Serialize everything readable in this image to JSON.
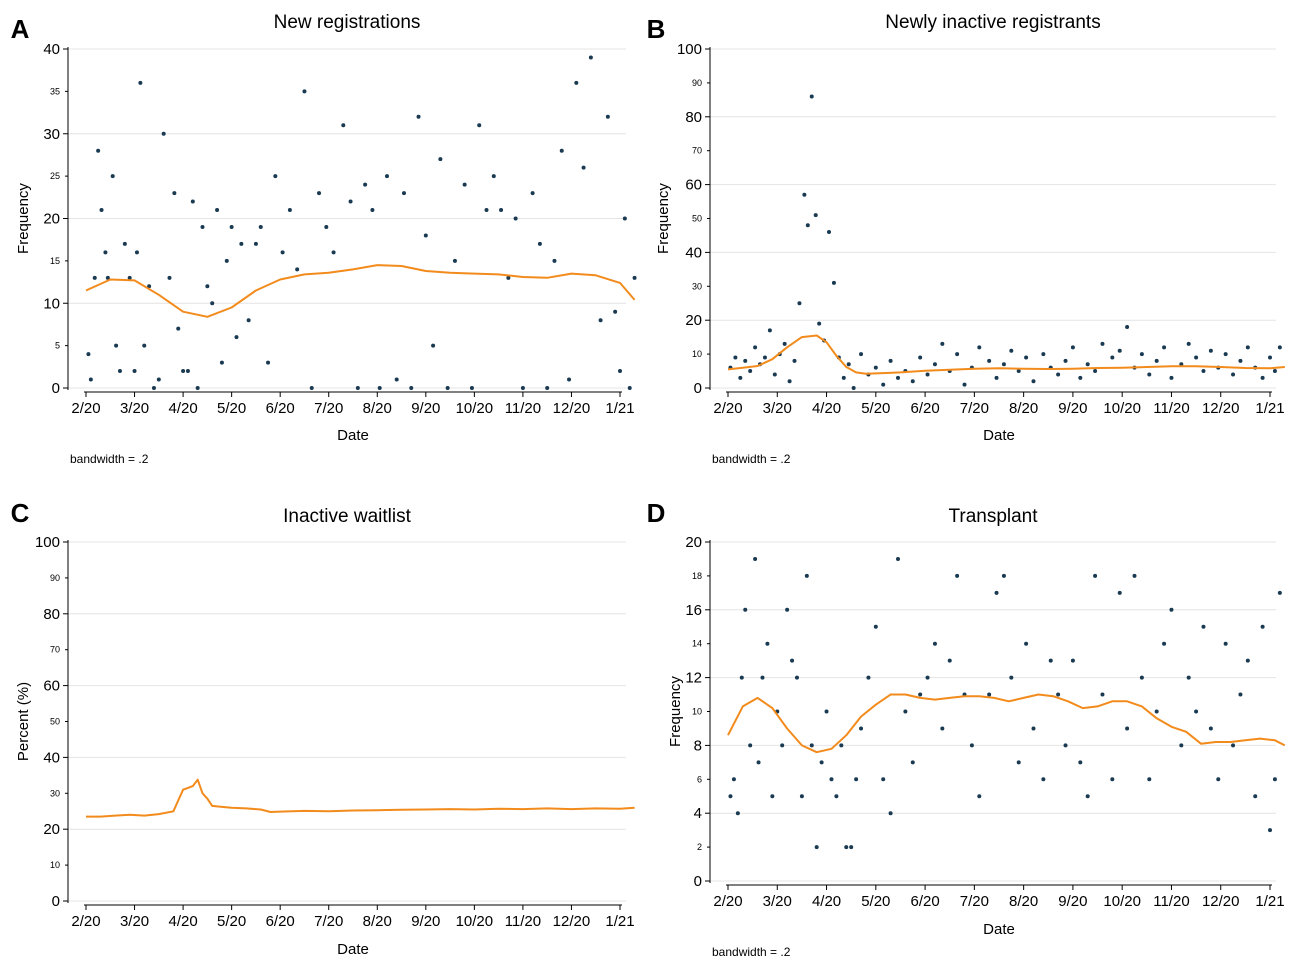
{
  "colors": {
    "points": "#1a3a52",
    "fit": "#f28b1c",
    "grid": "#e4e4e4",
    "axis": "#000000"
  },
  "x_ticks": [
    "2/20",
    "3/20",
    "4/20",
    "5/20",
    "6/20",
    "7/20",
    "8/20",
    "9/20",
    "10/20",
    "11/20",
    "12/20",
    "1/21"
  ],
  "chart_data": [
    {
      "panel": "A",
      "type": "scatter",
      "title": "New registrations",
      "xlabel": "Date",
      "ylabel": "Frequency",
      "note": "bandwidth = .2",
      "xlim": [
        "2/20",
        "1/21"
      ],
      "ylim": [
        0,
        40
      ],
      "y_ticks_major": [
        0,
        10,
        20,
        30,
        40
      ],
      "y_ticks_minor": [
        5,
        15,
        25,
        35
      ],
      "grid": true,
      "series": [
        {
          "type": "scatter",
          "x": [
            0.05,
            0.1,
            0.18,
            0.25,
            0.32,
            0.4,
            0.45,
            0.55,
            0.62,
            0.7,
            0.8,
            0.9,
            1.0,
            1.05,
            1.12,
            1.2,
            1.3,
            1.4,
            1.5,
            1.6,
            1.72,
            1.82,
            1.9,
            2.0,
            2.1,
            2.2,
            2.3,
            2.4,
            2.5,
            2.6,
            2.7,
            2.8,
            2.9,
            3.0,
            3.1,
            3.2,
            3.35,
            3.5,
            3.6,
            3.75,
            3.9,
            4.05,
            4.2,
            4.35,
            4.5,
            4.65,
            4.8,
            4.95,
            5.1,
            5.3,
            5.45,
            5.6,
            5.75,
            5.9,
            6.05,
            6.2,
            6.4,
            6.55,
            6.7,
            6.85,
            7.0,
            7.15,
            7.3,
            7.45,
            7.6,
            7.8,
            7.95,
            8.1,
            8.25,
            8.4,
            8.55,
            8.7,
            8.85,
            9.0,
            9.2,
            9.35,
            9.5,
            9.65,
            9.8,
            9.95,
            10.1,
            10.25,
            10.4,
            10.6,
            10.75,
            10.9,
            11.0,
            11.1,
            11.2,
            11.3
          ],
          "y": [
            4,
            1,
            13,
            28,
            21,
            16,
            13,
            25,
            5,
            2,
            17,
            13,
            2,
            16,
            36,
            5,
            12,
            0,
            1,
            30,
            13,
            23,
            7,
            2,
            2,
            22,
            0,
            19,
            12,
            10,
            21,
            3,
            15,
            19,
            6,
            17,
            8,
            17,
            19,
            3,
            25,
            16,
            21,
            14,
            35,
            0,
            23,
            19,
            16,
            31,
            22,
            0,
            24,
            21,
            0,
            25,
            1,
            23,
            0,
            32,
            18,
            5,
            27,
            0,
            15,
            24,
            0,
            31,
            21,
            25,
            21,
            13,
            20,
            0,
            23,
            17,
            0,
            15,
            28,
            1,
            36,
            26,
            39,
            8,
            32,
            9,
            2,
            20,
            0,
            13
          ]
        },
        {
          "type": "line",
          "x": [
            0.0,
            0.5,
            1.0,
            1.5,
            2.0,
            2.5,
            3.0,
            3.5,
            4.0,
            4.5,
            5.0,
            5.5,
            6.0,
            6.5,
            7.0,
            7.5,
            8.0,
            8.5,
            9.0,
            9.5,
            10.0,
            10.5,
            11.0,
            11.3
          ],
          "y": [
            11.5,
            12.8,
            12.7,
            11.0,
            9.0,
            8.4,
            9.5,
            11.5,
            12.8,
            13.4,
            13.6,
            14.0,
            14.5,
            14.4,
            13.8,
            13.6,
            13.5,
            13.4,
            13.1,
            13.0,
            13.5,
            13.3,
            12.4,
            10.4
          ]
        }
      ]
    },
    {
      "panel": "B",
      "type": "scatter",
      "title": "Newly inactive registrants",
      "xlabel": "Date",
      "ylabel": "Frequency",
      "note": "bandwidth = .2",
      "xlim": [
        "2/20",
        "1/21"
      ],
      "ylim": [
        0,
        100
      ],
      "y_ticks_major": [
        0,
        20,
        40,
        60,
        80,
        100
      ],
      "y_ticks_minor": [
        10,
        30,
        50,
        70,
        90
      ],
      "grid": true,
      "series": [
        {
          "type": "scatter",
          "x": [
            0.05,
            0.15,
            0.25,
            0.35,
            0.45,
            0.55,
            0.65,
            0.75,
            0.85,
            0.95,
            1.05,
            1.15,
            1.25,
            1.35,
            1.45,
            1.55,
            1.62,
            1.7,
            1.78,
            1.85,
            1.95,
            2.05,
            2.15,
            2.25,
            2.35,
            2.45,
            2.55,
            2.7,
            2.85,
            3.0,
            3.15,
            3.3,
            3.45,
            3.6,
            3.75,
            3.9,
            4.05,
            4.2,
            4.35,
            4.5,
            4.65,
            4.8,
            4.95,
            5.1,
            5.3,
            5.45,
            5.6,
            5.75,
            5.9,
            6.05,
            6.2,
            6.4,
            6.55,
            6.7,
            6.85,
            7.0,
            7.15,
            7.3,
            7.45,
            7.6,
            7.8,
            7.95,
            8.1,
            8.25,
            8.4,
            8.55,
            8.7,
            8.85,
            9.0,
            9.2,
            9.35,
            9.5,
            9.65,
            9.8,
            9.95,
            10.1,
            10.25,
            10.4,
            10.55,
            10.7,
            10.85,
            11.0,
            11.1,
            11.2
          ],
          "y": [
            6,
            9,
            3,
            8,
            5,
            12,
            7,
            9,
            17,
            4,
            10,
            13,
            2,
            8,
            25,
            57,
            48,
            86,
            51,
            19,
            14,
            46,
            31,
            9,
            3,
            7,
            0,
            10,
            4,
            6,
            1,
            8,
            3,
            5,
            2,
            9,
            4,
            7,
            13,
            5,
            10,
            1,
            6,
            12,
            8,
            3,
            7,
            11,
            5,
            9,
            2,
            10,
            6,
            4,
            8,
            12,
            3,
            7,
            5,
            13,
            9,
            11,
            18,
            6,
            10,
            4,
            8,
            12,
            3,
            7,
            13,
            9,
            5,
            11,
            6,
            10,
            4,
            8,
            12,
            6,
            3,
            9,
            5,
            12
          ]
        },
        {
          "type": "line",
          "x": [
            0.0,
            0.3,
            0.6,
            0.9,
            1.2,
            1.5,
            1.8,
            2.0,
            2.2,
            2.4,
            2.6,
            2.8,
            3.0,
            3.5,
            4.0,
            4.5,
            5.0,
            5.5,
            6.0,
            6.5,
            7.0,
            7.5,
            8.0,
            8.5,
            9.0,
            9.5,
            10.0,
            10.5,
            11.0,
            11.3
          ],
          "y": [
            5.5,
            6.0,
            6.5,
            8.5,
            12.0,
            15.0,
            15.5,
            13.5,
            9.5,
            6.2,
            4.6,
            4.2,
            4.3,
            4.6,
            5.1,
            5.4,
            5.7,
            5.8,
            5.7,
            5.6,
            5.7,
            5.9,
            6.0,
            6.2,
            6.4,
            6.4,
            6.2,
            5.9,
            5.8,
            6.2
          ]
        }
      ]
    },
    {
      "panel": "C",
      "type": "line",
      "title": "Inactive waitlist",
      "xlabel": "Date",
      "ylabel": "Percent (%)",
      "note": "",
      "xlim": [
        "2/20",
        "1/21"
      ],
      "ylim": [
        0,
        100
      ],
      "y_ticks_major": [
        0,
        20,
        40,
        60,
        80,
        100
      ],
      "y_ticks_minor": [
        10,
        30,
        50,
        70,
        90
      ],
      "grid": true,
      "series": [
        {
          "type": "line",
          "x": [
            0.0,
            0.3,
            0.6,
            0.9,
            1.2,
            1.5,
            1.8,
            1.9,
            2.0,
            2.1,
            2.2,
            2.3,
            2.4,
            2.5,
            2.6,
            2.8,
            3.0,
            3.3,
            3.6,
            3.8,
            4.0,
            4.5,
            5.0,
            5.5,
            6.0,
            6.5,
            7.0,
            7.5,
            8.0,
            8.5,
            9.0,
            9.5,
            10.0,
            10.5,
            11.0,
            11.3
          ],
          "y": [
            23.5,
            23.5,
            23.8,
            24.0,
            23.8,
            24.2,
            25.0,
            28.0,
            31.0,
            31.5,
            32.0,
            33.8,
            30.0,
            28.5,
            26.5,
            26.2,
            26.0,
            25.8,
            25.5,
            24.8,
            24.9,
            25.1,
            25.0,
            25.2,
            25.3,
            25.4,
            25.5,
            25.6,
            25.5,
            25.7,
            25.6,
            25.8,
            25.6,
            25.8,
            25.7,
            26.0
          ]
        }
      ]
    },
    {
      "panel": "D",
      "type": "scatter",
      "title": "Transplant",
      "xlabel": "Date",
      "ylabel": "Frequency",
      "note": "bandwidth = .2",
      "xlim": [
        "2/20",
        "1/21"
      ],
      "ylim": [
        0,
        20
      ],
      "y_ticks_major": [
        0,
        4,
        8,
        12,
        16,
        20
      ],
      "y_ticks_minor": [
        2,
        6,
        10,
        14,
        18
      ],
      "grid": true,
      "series": [
        {
          "type": "scatter",
          "x": [
            0.05,
            0.12,
            0.2,
            0.28,
            0.35,
            0.45,
            0.55,
            0.62,
            0.7,
            0.8,
            0.9,
            1.0,
            1.1,
            1.2,
            1.3,
            1.4,
            1.5,
            1.6,
            1.7,
            1.8,
            1.9,
            2.0,
            2.1,
            2.2,
            2.3,
            2.4,
            2.5,
            2.6,
            2.7,
            2.85,
            3.0,
            3.15,
            3.3,
            3.45,
            3.6,
            3.75,
            3.9,
            4.05,
            4.2,
            4.35,
            4.5,
            4.65,
            4.8,
            4.95,
            5.1,
            5.3,
            5.45,
            5.6,
            5.75,
            5.9,
            6.05,
            6.2,
            6.4,
            6.55,
            6.7,
            6.85,
            7.0,
            7.15,
            7.3,
            7.45,
            7.6,
            7.8,
            7.95,
            8.1,
            8.25,
            8.4,
            8.55,
            8.7,
            8.85,
            9.0,
            9.2,
            9.35,
            9.5,
            9.65,
            9.8,
            9.95,
            10.1,
            10.25,
            10.4,
            10.55,
            10.7,
            10.85,
            11.0,
            11.1,
            11.2
          ],
          "y": [
            5,
            6,
            4,
            12,
            16,
            8,
            19,
            7,
            12,
            14,
            5,
            10,
            8,
            16,
            13,
            12,
            5,
            18,
            8,
            2,
            7,
            10,
            6,
            5,
            8,
            2,
            2,
            6,
            9,
            12,
            15,
            6,
            4,
            19,
            10,
            7,
            11,
            12,
            14,
            9,
            13,
            18,
            11,
            8,
            5,
            11,
            17,
            18,
            12,
            7,
            14,
            9,
            6,
            13,
            11,
            8,
            13,
            7,
            5,
            18,
            11,
            6,
            17,
            9,
            18,
            12,
            6,
            10,
            14,
            16,
            8,
            12,
            10,
            15,
            9,
            6,
            14,
            8,
            11,
            13,
            5,
            15,
            3,
            6,
            17
          ]
        },
        {
          "type": "line",
          "x": [
            0.0,
            0.3,
            0.6,
            0.9,
            1.2,
            1.5,
            1.8,
            2.1,
            2.4,
            2.7,
            3.0,
            3.3,
            3.6,
            3.9,
            4.2,
            4.5,
            4.8,
            5.1,
            5.4,
            5.7,
            6.0,
            6.3,
            6.6,
            6.9,
            7.2,
            7.5,
            7.8,
            8.1,
            8.4,
            8.7,
            9.0,
            9.3,
            9.6,
            9.9,
            10.2,
            10.5,
            10.8,
            11.1,
            11.3
          ],
          "y": [
            8.6,
            10.3,
            10.8,
            10.2,
            9.0,
            8.0,
            7.6,
            7.8,
            8.6,
            9.7,
            10.4,
            11.0,
            11.0,
            10.8,
            10.7,
            10.8,
            10.9,
            10.9,
            10.8,
            10.6,
            10.8,
            11.0,
            10.9,
            10.6,
            10.2,
            10.3,
            10.6,
            10.6,
            10.3,
            9.6,
            9.1,
            8.8,
            8.1,
            8.2,
            8.2,
            8.3,
            8.4,
            8.3,
            8.0
          ]
        }
      ]
    }
  ],
  "panel_labels": [
    "A",
    "B",
    "C",
    "D"
  ]
}
